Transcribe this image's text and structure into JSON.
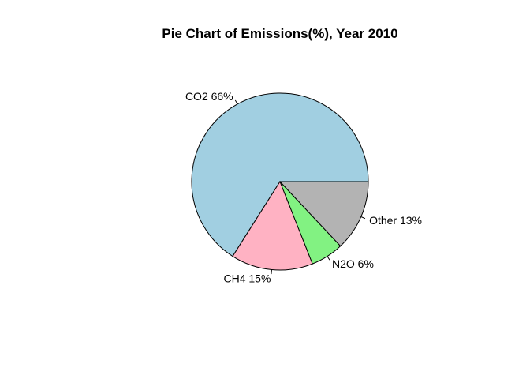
{
  "chart_data": {
    "type": "pie",
    "title": "Pie Chart of Emissions(%), Year 2010",
    "categories": [
      "CO2",
      "CH4",
      "N2O",
      "Other"
    ],
    "values": [
      66,
      15,
      6,
      13
    ],
    "labels": [
      "CO2 66%",
      "CH4 15%",
      "N2O 6%",
      "Other 13%"
    ],
    "colors": [
      "#a1cfe1",
      "#ffb2c3",
      "#82f282",
      "#b3b3b3"
    ],
    "start_angle_deg": 0,
    "direction": "counterclockwise"
  }
}
